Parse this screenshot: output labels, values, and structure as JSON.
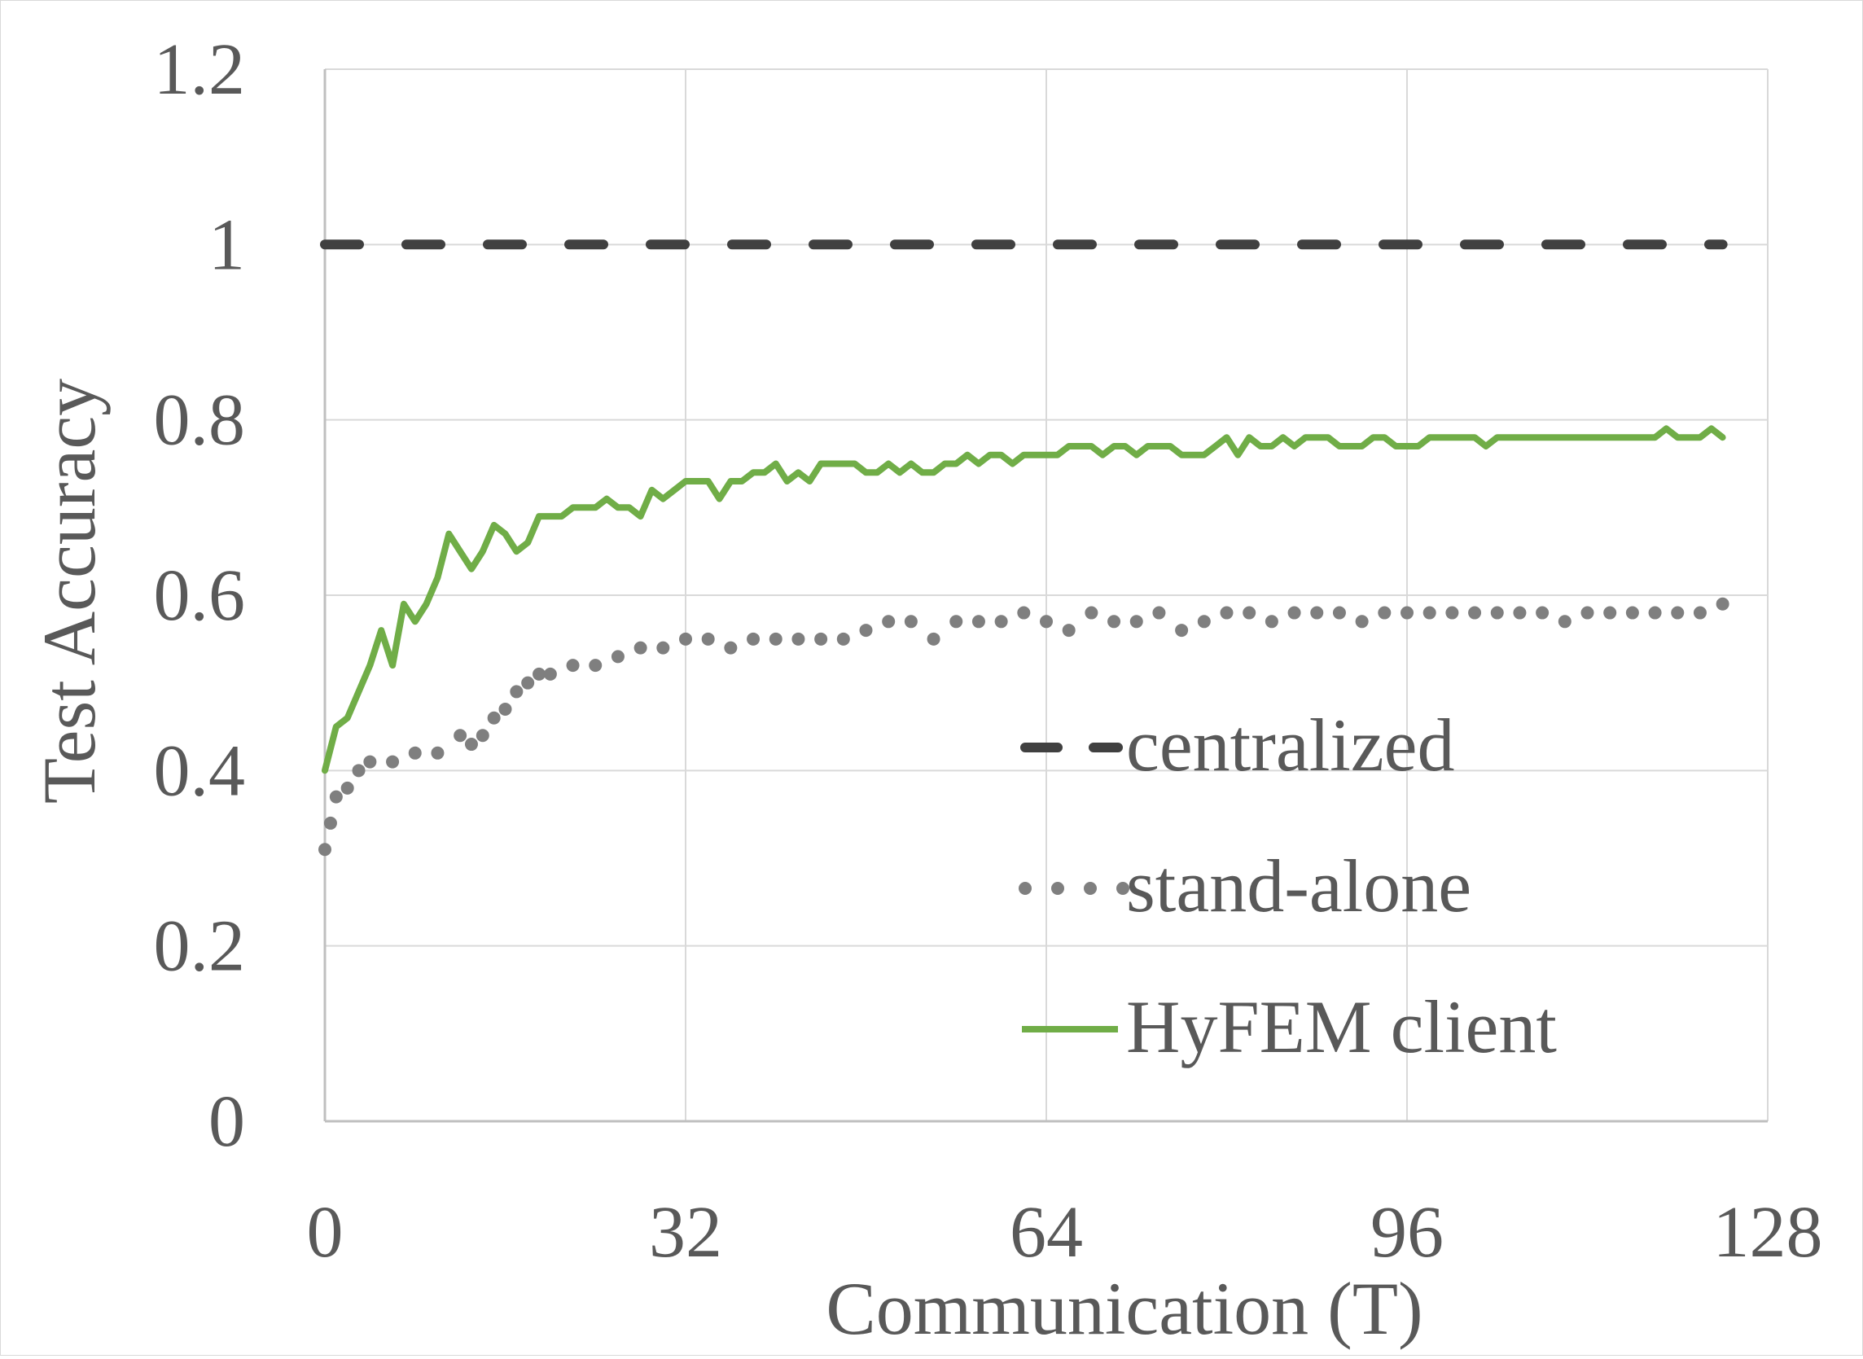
{
  "chart_data": {
    "type": "line",
    "title": "",
    "xlabel": "Communication (T)",
    "ylabel": "Test Accuracy",
    "xlim": [
      0,
      128
    ],
    "ylim": [
      0,
      1.2
    ],
    "x_ticks": [
      0,
      32,
      64,
      96,
      128
    ],
    "x_tick_labels": [
      "0",
      "32",
      "64",
      "96",
      "128"
    ],
    "y_ticks": [
      0,
      0.2,
      0.4,
      0.6,
      0.8,
      1,
      1.2
    ],
    "y_tick_labels": [
      "0",
      "0.2",
      "0.4",
      "0.6",
      "0.8",
      "1",
      "1.2"
    ],
    "grid": true,
    "legend_position": "bottom-right",
    "series": [
      {
        "name": "centralized",
        "style": "dashed",
        "color": "#404040",
        "x": [
          0,
          124
        ],
        "values": [
          1.0,
          1.0
        ]
      },
      {
        "name": "stand-alone",
        "style": "dotted",
        "color": "#7f7f7f",
        "x": [
          0,
          0.5,
          1,
          2,
          3,
          4,
          6,
          8,
          10,
          12,
          13,
          14,
          15,
          16,
          17,
          18,
          19,
          20,
          22,
          24,
          26,
          28,
          30,
          32,
          34,
          36,
          38,
          40,
          42,
          44,
          46,
          48,
          50,
          52,
          54,
          56,
          58,
          60,
          62,
          64,
          66,
          68,
          70,
          72,
          74,
          76,
          78,
          80,
          82,
          84,
          86,
          88,
          90,
          92,
          94,
          96,
          98,
          100,
          102,
          104,
          106,
          108,
          110,
          112,
          114,
          116,
          118,
          120,
          122,
          124
        ],
        "values": [
          0.31,
          0.34,
          0.37,
          0.38,
          0.4,
          0.41,
          0.41,
          0.42,
          0.42,
          0.44,
          0.43,
          0.44,
          0.46,
          0.47,
          0.49,
          0.5,
          0.51,
          0.51,
          0.52,
          0.52,
          0.53,
          0.54,
          0.54,
          0.55,
          0.55,
          0.54,
          0.55,
          0.55,
          0.55,
          0.55,
          0.55,
          0.56,
          0.57,
          0.57,
          0.55,
          0.57,
          0.57,
          0.57,
          0.58,
          0.57,
          0.56,
          0.58,
          0.57,
          0.57,
          0.58,
          0.56,
          0.57,
          0.58,
          0.58,
          0.57,
          0.58,
          0.58,
          0.58,
          0.57,
          0.58,
          0.58,
          0.58,
          0.58,
          0.58,
          0.58,
          0.58,
          0.58,
          0.57,
          0.58,
          0.58,
          0.58,
          0.58,
          0.58,
          0.58,
          0.59
        ]
      },
      {
        "name": "HyFEM client",
        "style": "solid",
        "color": "#70ad47",
        "x": [
          0,
          1,
          2,
          3,
          4,
          5,
          6,
          7,
          8,
          9,
          10,
          11,
          12,
          13,
          14,
          15,
          16,
          17,
          18,
          19,
          20,
          21,
          22,
          23,
          24,
          25,
          26,
          27,
          28,
          29,
          30,
          31,
          32,
          33,
          34,
          35,
          36,
          37,
          38,
          39,
          40,
          41,
          42,
          43,
          44,
          45,
          46,
          47,
          48,
          49,
          50,
          51,
          52,
          53,
          54,
          55,
          56,
          57,
          58,
          59,
          60,
          61,
          62,
          63,
          64,
          65,
          66,
          67,
          68,
          69,
          70,
          71,
          72,
          73,
          74,
          75,
          76,
          77,
          78,
          79,
          80,
          81,
          82,
          83,
          84,
          85,
          86,
          87,
          88,
          89,
          90,
          91,
          92,
          93,
          94,
          95,
          96,
          97,
          98,
          99,
          100,
          101,
          102,
          103,
          104,
          105,
          106,
          107,
          108,
          109,
          110,
          111,
          112,
          113,
          114,
          115,
          116,
          117,
          118,
          119,
          120,
          121,
          122,
          123,
          124
        ],
        "values": [
          0.4,
          0.45,
          0.46,
          0.49,
          0.52,
          0.56,
          0.52,
          0.59,
          0.57,
          0.59,
          0.62,
          0.67,
          0.65,
          0.63,
          0.65,
          0.68,
          0.67,
          0.65,
          0.66,
          0.69,
          0.69,
          0.69,
          0.7,
          0.7,
          0.7,
          0.71,
          0.7,
          0.7,
          0.69,
          0.72,
          0.71,
          0.72,
          0.73,
          0.73,
          0.73,
          0.71,
          0.73,
          0.73,
          0.74,
          0.74,
          0.75,
          0.73,
          0.74,
          0.73,
          0.75,
          0.75,
          0.75,
          0.75,
          0.74,
          0.74,
          0.75,
          0.74,
          0.75,
          0.74,
          0.74,
          0.75,
          0.75,
          0.76,
          0.75,
          0.76,
          0.76,
          0.75,
          0.76,
          0.76,
          0.76,
          0.76,
          0.77,
          0.77,
          0.77,
          0.76,
          0.77,
          0.77,
          0.76,
          0.77,
          0.77,
          0.77,
          0.76,
          0.76,
          0.76,
          0.77,
          0.78,
          0.76,
          0.78,
          0.77,
          0.77,
          0.78,
          0.77,
          0.78,
          0.78,
          0.78,
          0.77,
          0.77,
          0.77,
          0.78,
          0.78,
          0.77,
          0.77,
          0.77,
          0.78,
          0.78,
          0.78,
          0.78,
          0.78,
          0.77,
          0.78,
          0.78,
          0.78,
          0.78,
          0.78,
          0.78,
          0.78,
          0.78,
          0.78,
          0.78,
          0.78,
          0.78,
          0.78,
          0.78,
          0.78,
          0.79,
          0.78,
          0.78,
          0.78,
          0.79,
          0.78
        ]
      }
    ]
  }
}
